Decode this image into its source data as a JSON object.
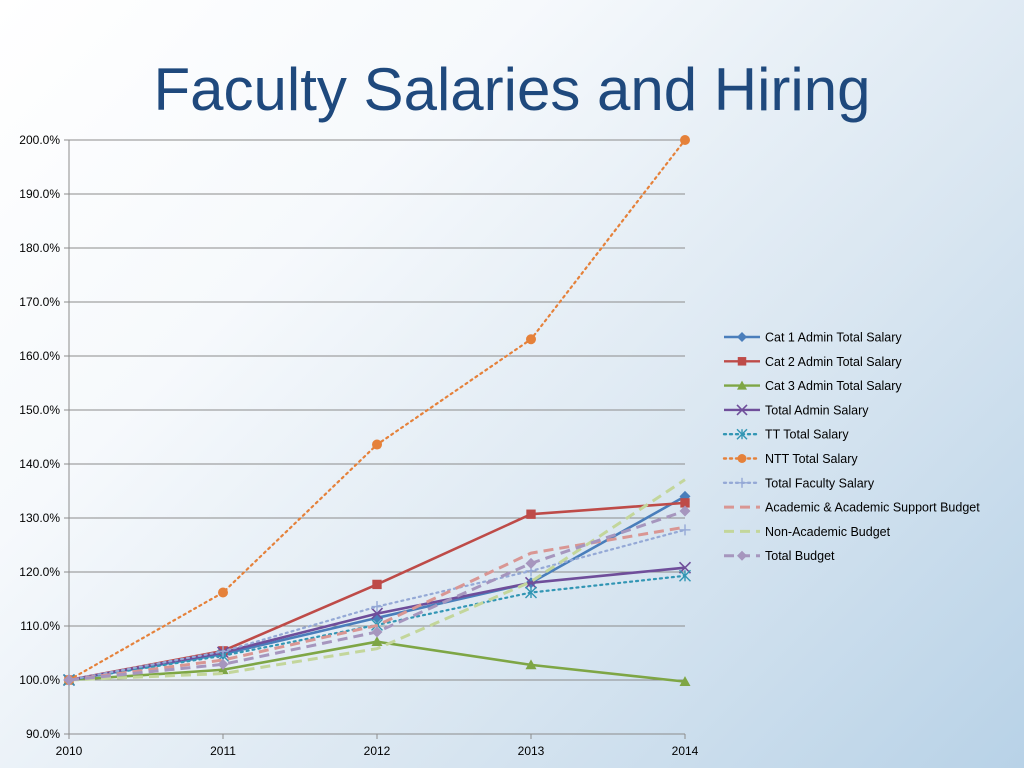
{
  "slide": {
    "title": "Faculty Salaries and Hiring"
  },
  "chart_data": {
    "type": "line",
    "title": "",
    "xlabel": "",
    "ylabel": "",
    "x": [
      "2010",
      "2011",
      "2012",
      "2013",
      "2014"
    ],
    "ylim": [
      90,
      200
    ],
    "yticks": [
      "90.0%",
      "100.0%",
      "110.0%",
      "120.0%",
      "130.0%",
      "140.0%",
      "150.0%",
      "160.0%",
      "170.0%",
      "180.0%",
      "190.0%",
      "200.0%"
    ],
    "grid": true,
    "legend": "right",
    "series": [
      {
        "name": "Cat 1 Admin Total Salary",
        "values": [
          100,
          104.8,
          111.5,
          118.0,
          134.0
        ],
        "color": "#4a7ebb",
        "dash": "solid",
        "marker": "diamond"
      },
      {
        "name": "Cat 2 Admin Total Salary",
        "values": [
          100,
          105.4,
          117.7,
          130.7,
          132.8
        ],
        "color": "#be4b48",
        "dash": "solid",
        "marker": "square"
      },
      {
        "name": "Cat 3 Admin Total Salary",
        "values": [
          100,
          101.9,
          107.1,
          102.8,
          99.7
        ],
        "color": "#7ea645",
        "dash": "solid",
        "marker": "triangle"
      },
      {
        "name": "Total Admin Salary",
        "values": [
          100,
          105.1,
          112.3,
          118.0,
          120.8
        ],
        "color": "#6f4e9a",
        "dash": "solid",
        "marker": "x"
      },
      {
        "name": "TT Total Salary",
        "values": [
          100,
          104.5,
          110.2,
          116.2,
          119.3
        ],
        "color": "#3296b4",
        "dash": "dot",
        "marker": "star"
      },
      {
        "name": "NTT Total Salary",
        "values": [
          100,
          116.2,
          143.6,
          163.1,
          200.0
        ],
        "color": "#e5813a",
        "dash": "dot",
        "marker": "circle"
      },
      {
        "name": "Total Faculty Salary",
        "values": [
          100,
          105.3,
          113.6,
          120.2,
          127.8
        ],
        "color": "#95a9d6",
        "dash": "dot",
        "marker": "plus"
      },
      {
        "name": "Academic & Academic Support Budget",
        "values": [
          100,
          103.7,
          110.1,
          123.5,
          128.3
        ],
        "color": "#d99693",
        "dash": "dash",
        "marker": "none"
      },
      {
        "name": "Non-Academic Budget",
        "values": [
          100,
          101.2,
          105.8,
          118.2,
          137.1
        ],
        "color": "#c3d69b",
        "dash": "dash",
        "marker": "none"
      },
      {
        "name": "Total Budget",
        "values": [
          100,
          102.9,
          108.9,
          121.6,
          131.3
        ],
        "color": "#a696be",
        "dash": "dash",
        "marker": "diamond"
      }
    ]
  }
}
